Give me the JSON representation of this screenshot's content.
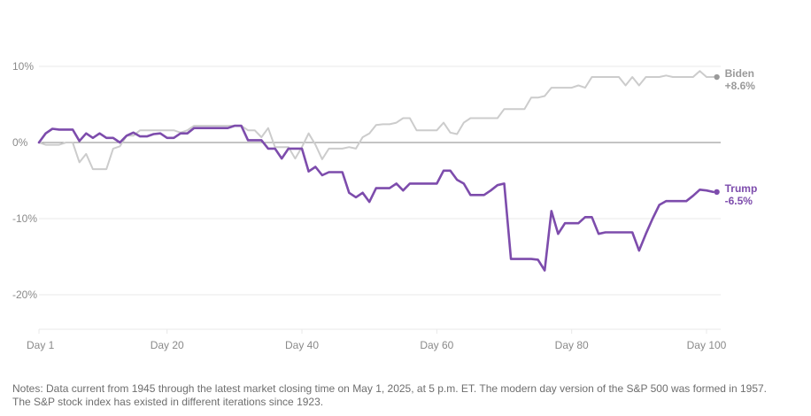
{
  "chart_data": {
    "type": "line",
    "xlabel": "",
    "ylabel": "",
    "xlim": [
      1,
      101
    ],
    "ylim": [
      -25,
      10
    ],
    "x_ticks": [
      {
        "value": 1,
        "label": "Day 1"
      },
      {
        "value": 20,
        "label": "Day 20"
      },
      {
        "value": 40,
        "label": "Day 40"
      },
      {
        "value": 60,
        "label": "Day 60"
      },
      {
        "value": 80,
        "label": "Day 80"
      },
      {
        "value": 100,
        "label": "Day 100"
      }
    ],
    "y_ticks": [
      {
        "value": 10,
        "label": "10%"
      },
      {
        "value": 0,
        "label": "0%"
      },
      {
        "value": -10,
        "label": "-10%"
      },
      {
        "value": -20,
        "label": "-20%"
      }
    ],
    "grid": true,
    "series": [
      {
        "name": "Biden",
        "end_label": "+8.6%",
        "color": "#cccccc",
        "label_color": "#9a9a9a",
        "x": [
          1,
          2,
          3,
          4,
          5,
          6,
          7,
          8,
          9,
          10,
          11,
          12,
          13,
          14,
          15,
          16,
          17,
          18,
          19,
          20,
          21,
          22,
          23,
          24,
          25,
          26,
          27,
          28,
          29,
          30,
          31,
          32,
          33,
          34,
          35,
          36,
          37,
          38,
          39,
          40,
          41,
          42,
          43,
          44,
          45,
          46,
          47,
          48,
          49,
          50,
          51,
          52,
          53,
          54,
          55,
          56,
          57,
          58,
          59,
          60,
          61,
          62,
          63,
          64,
          65,
          66,
          67,
          68,
          69,
          70,
          71,
          72,
          73,
          74,
          75,
          76,
          77,
          78,
          79,
          80,
          81,
          82,
          83,
          84,
          85,
          86,
          87,
          88,
          89,
          90,
          91,
          92,
          93,
          94,
          95,
          96,
          97,
          98,
          99,
          100,
          101
        ],
        "values": [
          0,
          -0.3,
          -0.3,
          -0.3,
          0,
          0,
          -2.6,
          -1.5,
          -3.5,
          -3.5,
          -3.5,
          -0.8,
          -0.5,
          0.9,
          0.9,
          1.6,
          1.6,
          1.6,
          1.6,
          1.6,
          1.6,
          1.3,
          1.6,
          2.2,
          2.2,
          2.2,
          2.2,
          2.2,
          2.2,
          2.2,
          2.2,
          1.6,
          1.6,
          0.7,
          1.9,
          -0.6,
          -0.6,
          -0.6,
          -2.1,
          -0.6,
          1.2,
          -0.3,
          -2.2,
          -0.8,
          -0.8,
          -0.8,
          -0.6,
          -0.8,
          0.7,
          1.2,
          2.3,
          2.4,
          2.4,
          2.6,
          3.2,
          3.2,
          1.6,
          1.6,
          1.6,
          1.6,
          2.6,
          1.3,
          1.1,
          2.6,
          3.2,
          3.2,
          3.2,
          3.2,
          3.2,
          4.4,
          4.4,
          4.4,
          4.4,
          5.9,
          5.9,
          6.1,
          7.2,
          7.2,
          7.2,
          7.2,
          7.5,
          7.2,
          8.6,
          8.6,
          8.6,
          8.6,
          8.6,
          7.5,
          8.6,
          7.5,
          8.6,
          8.6,
          8.6,
          8.8,
          8.6,
          8.6,
          8.6,
          8.6,
          9.4,
          8.6,
          8.6
        ]
      },
      {
        "name": "Trump",
        "end_label": "-6.5%",
        "color": "#7d4cac",
        "label_color": "#7d4cac",
        "x": [
          1,
          2,
          3,
          4,
          5,
          6,
          7,
          8,
          9,
          10,
          11,
          12,
          13,
          14,
          15,
          16,
          17,
          18,
          19,
          20,
          21,
          22,
          23,
          24,
          25,
          26,
          27,
          28,
          29,
          30,
          31,
          32,
          33,
          34,
          35,
          36,
          37,
          38,
          39,
          40,
          41,
          42,
          43,
          44,
          45,
          46,
          47,
          48,
          49,
          50,
          51,
          52,
          53,
          54,
          55,
          56,
          57,
          58,
          59,
          60,
          61,
          62,
          63,
          64,
          65,
          66,
          67,
          68,
          69,
          70,
          71,
          72,
          73,
          74,
          75,
          76,
          77,
          78,
          79,
          80,
          81,
          82,
          83,
          84,
          85,
          86,
          87,
          88,
          89,
          90,
          91,
          92,
          93,
          94,
          95,
          96,
          97,
          98,
          99,
          100,
          101
        ],
        "values": [
          0,
          1.2,
          1.8,
          1.7,
          1.7,
          1.7,
          0.2,
          1.2,
          0.6,
          1.2,
          0.6,
          0.6,
          0,
          0.9,
          1.3,
          0.8,
          0.8,
          1.1,
          1.2,
          0.6,
          0.6,
          1.2,
          1.2,
          1.9,
          1.9,
          1.9,
          1.9,
          1.9,
          1.9,
          2.2,
          2.2,
          0.3,
          0.3,
          0.3,
          -0.8,
          -0.8,
          -2.1,
          -0.8,
          -0.8,
          -0.8,
          -3.8,
          -3.2,
          -4.3,
          -3.9,
          -3.9,
          -3.9,
          -6.6,
          -7.2,
          -6.6,
          -7.8,
          -6.0,
          -6.0,
          -6.0,
          -5.4,
          -6.3,
          -5.4,
          -5.4,
          -5.4,
          -5.4,
          -5.4,
          -3.7,
          -3.7,
          -4.9,
          -5.4,
          -6.9,
          -6.9,
          -6.9,
          -6.3,
          -5.6,
          -5.4,
          -15.3,
          -15.3,
          -15.3,
          -15.3,
          -15.4,
          -16.8,
          -9.0,
          -12.0,
          -10.6,
          -10.6,
          -10.6,
          -9.8,
          -9.8,
          -12.0,
          -11.8,
          -11.8,
          -11.8,
          -11.8,
          -11.8,
          -14.2,
          -12.0,
          -10.0,
          -8.2,
          -7.7,
          -7.7,
          -7.7,
          -7.7,
          -7.0,
          -6.2,
          -6.3,
          -6.5
        ]
      }
    ]
  },
  "notes": {
    "line1": "Notes: Data current from 1945 through the latest market closing time on May 1, 2025, at 5 p.m. ET. The modern day version of the S&P 500 was formed in 1957.",
    "line2": "The S&P stock index has existed in different iterations since 1923."
  },
  "colors": {
    "grid": "#e8e8e8",
    "zero_line": "#8a8a8a",
    "tick_text": "#8a8a8a"
  }
}
